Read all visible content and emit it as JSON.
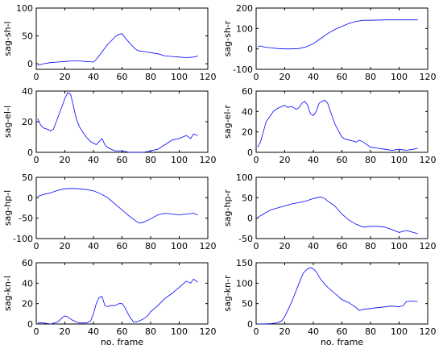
{
  "chart_data": [
    {
      "type": "line",
      "ylabel": "sag-sh-l",
      "xlabel": "",
      "xlim": [
        0,
        120
      ],
      "ylim": [
        -10,
        100
      ],
      "xticks": [
        0,
        20,
        40,
        60,
        80,
        100,
        120
      ],
      "yticks": [
        0,
        50,
        100
      ],
      "series": [
        {
          "color": "#0000ff",
          "x": [
            1,
            5,
            10,
            15,
            20,
            25,
            30,
            35,
            40,
            42,
            45,
            48,
            50,
            52,
            55,
            58,
            60,
            62,
            65,
            68,
            70,
            72,
            75,
            78,
            80,
            85,
            90,
            95,
            100,
            105,
            110,
            113
          ],
          "y": [
            -3,
            0,
            2,
            3,
            4,
            5,
            5,
            4,
            3,
            8,
            18,
            28,
            35,
            40,
            48,
            53,
            54,
            47,
            38,
            30,
            25,
            23,
            22,
            21,
            20,
            18,
            14,
            13,
            12,
            11,
            12,
            14
          ]
        }
      ]
    },
    {
      "type": "line",
      "ylabel": "sag-sh-r",
      "xlabel": "",
      "xlim": [
        0,
        120
      ],
      "ylim": [
        -100,
        200
      ],
      "xticks": [
        0,
        20,
        40,
        60,
        80,
        100,
        120
      ],
      "yticks": [
        -100,
        0,
        100,
        200
      ],
      "series": [
        {
          "color": "#0000ff",
          "x": [
            1,
            3,
            5,
            10,
            15,
            20,
            25,
            30,
            35,
            40,
            45,
            50,
            55,
            60,
            65,
            70,
            75,
            80,
            90,
            100,
            110,
            113
          ],
          "y": [
            10,
            15,
            10,
            5,
            2,
            0,
            0,
            2,
            10,
            25,
            50,
            75,
            95,
            110,
            125,
            135,
            140,
            140,
            142,
            142,
            142,
            142
          ]
        }
      ]
    },
    {
      "type": "line",
      "ylabel": "sag-el-l",
      "xlabel": "",
      "xlim": [
        0,
        120
      ],
      "ylim": [
        0,
        40
      ],
      "xticks": [
        0,
        20,
        40,
        60,
        80,
        100,
        120
      ],
      "yticks": [
        0,
        20,
        40
      ],
      "series": [
        {
          "color": "#0000ff",
          "x": [
            1,
            3,
            5,
            8,
            10,
            12,
            14,
            16,
            18,
            20,
            22,
            24,
            26,
            28,
            30,
            32,
            35,
            38,
            40,
            42,
            44,
            46,
            48,
            50,
            55,
            60,
            65,
            70,
            75,
            80,
            85,
            90,
            95,
            100,
            105,
            108,
            110,
            113
          ],
          "y": [
            22,
            18,
            16,
            15,
            14,
            15,
            20,
            25,
            30,
            35,
            39,
            38,
            30,
            22,
            17,
            14,
            10,
            7,
            6,
            5,
            7,
            9,
            5,
            3,
            1,
            1,
            0,
            0,
            0,
            1,
            2,
            5,
            8,
            9,
            11,
            9,
            12,
            11
          ]
        }
      ]
    },
    {
      "type": "line",
      "ylabel": "sag-el-r",
      "xlabel": "",
      "xlim": [
        0,
        120
      ],
      "ylim": [
        0,
        60
      ],
      "xticks": [
        0,
        20,
        40,
        60,
        80,
        100,
        120
      ],
      "yticks": [
        0,
        20,
        40,
        60
      ],
      "series": [
        {
          "color": "#0000ff",
          "x": [
            1,
            3,
            5,
            7,
            10,
            12,
            15,
            18,
            20,
            22,
            25,
            28,
            30,
            32,
            34,
            36,
            38,
            40,
            42,
            44,
            46,
            48,
            50,
            52,
            55,
            58,
            60,
            62,
            65,
            68,
            70,
            72,
            75,
            78,
            80,
            85,
            90,
            95,
            100,
            105,
            110,
            113
          ],
          "y": [
            5,
            10,
            20,
            30,
            36,
            40,
            43,
            45,
            46,
            44,
            45,
            42,
            44,
            48,
            50,
            46,
            38,
            36,
            40,
            48,
            50,
            51,
            48,
            40,
            28,
            20,
            15,
            13,
            12,
            11,
            10,
            12,
            10,
            7,
            5,
            4,
            3,
            2,
            3,
            2,
            3,
            4
          ]
        }
      ]
    },
    {
      "type": "line",
      "ylabel": "sag-hp-l",
      "xlabel": "",
      "xlim": [
        0,
        120
      ],
      "ylim": [
        -100,
        50
      ],
      "xticks": [
        0,
        20,
        40,
        60,
        80,
        100,
        120
      ],
      "yticks": [
        -100,
        -50,
        0,
        50
      ],
      "series": [
        {
          "color": "#0000ff",
          "x": [
            1,
            5,
            10,
            15,
            20,
            25,
            30,
            35,
            40,
            45,
            50,
            55,
            60,
            65,
            70,
            72,
            75,
            80,
            85,
            90,
            95,
            100,
            105,
            110,
            113
          ],
          "y": [
            3,
            8,
            12,
            18,
            22,
            23,
            22,
            20,
            17,
            10,
            0,
            -15,
            -30,
            -45,
            -58,
            -62,
            -60,
            -52,
            -42,
            -38,
            -40,
            -42,
            -40,
            -38,
            -42
          ]
        }
      ]
    },
    {
      "type": "line",
      "ylabel": "sag-hp-r",
      "xlabel": "",
      "xlim": [
        0,
        120
      ],
      "ylim": [
        -50,
        100
      ],
      "xticks": [
        0,
        20,
        40,
        60,
        80,
        100,
        120
      ],
      "yticks": [
        -50,
        0,
        50,
        100
      ],
      "series": [
        {
          "color": "#0000ff",
          "x": [
            1,
            5,
            10,
            15,
            20,
            25,
            30,
            35,
            40,
            45,
            48,
            50,
            55,
            60,
            65,
            70,
            75,
            80,
            85,
            90,
            95,
            100,
            105,
            110,
            113
          ],
          "y": [
            2,
            10,
            20,
            25,
            30,
            35,
            38,
            42,
            48,
            52,
            48,
            42,
            30,
            10,
            -5,
            -15,
            -22,
            -20,
            -20,
            -22,
            -28,
            -35,
            -30,
            -35,
            -38
          ]
        }
      ]
    },
    {
      "type": "line",
      "ylabel": "sag-kn-l",
      "xlabel": "no. frame",
      "xlim": [
        0,
        120
      ],
      "ylim": [
        0,
        60
      ],
      "xticks": [
        0,
        20,
        40,
        60,
        80,
        100,
        120
      ],
      "yticks": [
        0,
        20,
        40,
        60
      ],
      "series": [
        {
          "color": "#0000ff",
          "x": [
            1,
            5,
            10,
            15,
            18,
            20,
            22,
            25,
            28,
            30,
            35,
            38,
            40,
            42,
            44,
            46,
            48,
            50,
            52,
            55,
            58,
            60,
            62,
            65,
            68,
            70,
            72,
            75,
            78,
            80,
            85,
            90,
            95,
            100,
            105,
            108,
            110,
            113
          ],
          "y": [
            1,
            1,
            0,
            2,
            6,
            8,
            7,
            4,
            2,
            1,
            1,
            3,
            10,
            20,
            26,
            27,
            18,
            17,
            18,
            18,
            20,
            20,
            16,
            8,
            2,
            2,
            3,
            5,
            8,
            12,
            18,
            25,
            30,
            36,
            42,
            40,
            44,
            41
          ]
        }
      ]
    },
    {
      "type": "line",
      "ylabel": "sag-kn-r",
      "xlabel": "no. frame",
      "xlim": [
        0,
        120
      ],
      "ylim": [
        0,
        150
      ],
      "xticks": [
        0,
        20,
        40,
        60,
        80,
        100,
        120
      ],
      "yticks": [
        0,
        50,
        100,
        150
      ],
      "series": [
        {
          "color": "#0000ff",
          "x": [
            1,
            5,
            10,
            15,
            18,
            20,
            25,
            30,
            33,
            36,
            38,
            40,
            42,
            45,
            50,
            55,
            60,
            65,
            70,
            72,
            75,
            80,
            85,
            90,
            95,
            100,
            103,
            105,
            110,
            113
          ],
          "y": [
            0,
            0,
            1,
            3,
            8,
            18,
            55,
            100,
            125,
            135,
            138,
            135,
            128,
            110,
            90,
            75,
            60,
            52,
            40,
            33,
            36,
            38,
            40,
            42,
            44,
            42,
            45,
            55,
            56,
            55
          ]
        }
      ]
    }
  ]
}
